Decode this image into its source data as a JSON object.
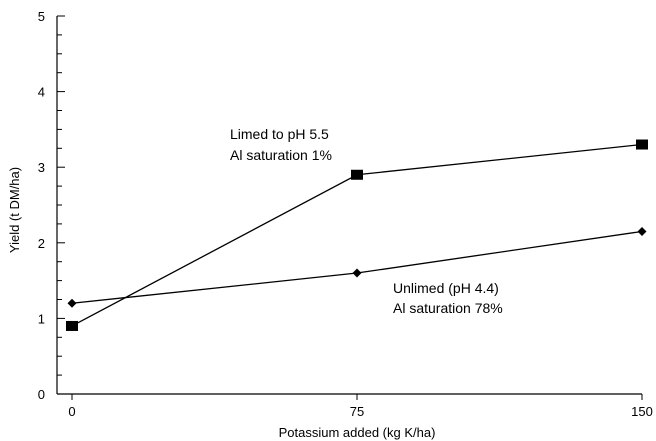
{
  "chart_data": {
    "type": "line",
    "title": "",
    "xlabel": "Potassium added (kg K/ha)",
    "ylabel": "Yield (t DM/ha)",
    "x": [
      0,
      75,
      150
    ],
    "x_ticks": [
      "0",
      "75",
      "150"
    ],
    "ylim": [
      0,
      5
    ],
    "y_major_ticks": [
      "0",
      "1",
      "2",
      "3",
      "4",
      "5"
    ],
    "y_minor_step": 0.25,
    "grid": false,
    "legend": "none",
    "series": [
      {
        "values": [
          0.9,
          2.9,
          3.3
        ],
        "marker": "square",
        "color": "#000000"
      },
      {
        "values": [
          1.2,
          1.6,
          2.15
        ],
        "marker": "diamond",
        "color": "#000000"
      }
    ],
    "annotations": [
      {
        "target_series": 0,
        "lines": [
          "Limed to pH 5.5",
          "Al saturation 1%"
        ]
      },
      {
        "target_series": 1,
        "lines": [
          "Unlimed (pH 4.4)",
          "Al saturation 78%"
        ]
      }
    ]
  }
}
